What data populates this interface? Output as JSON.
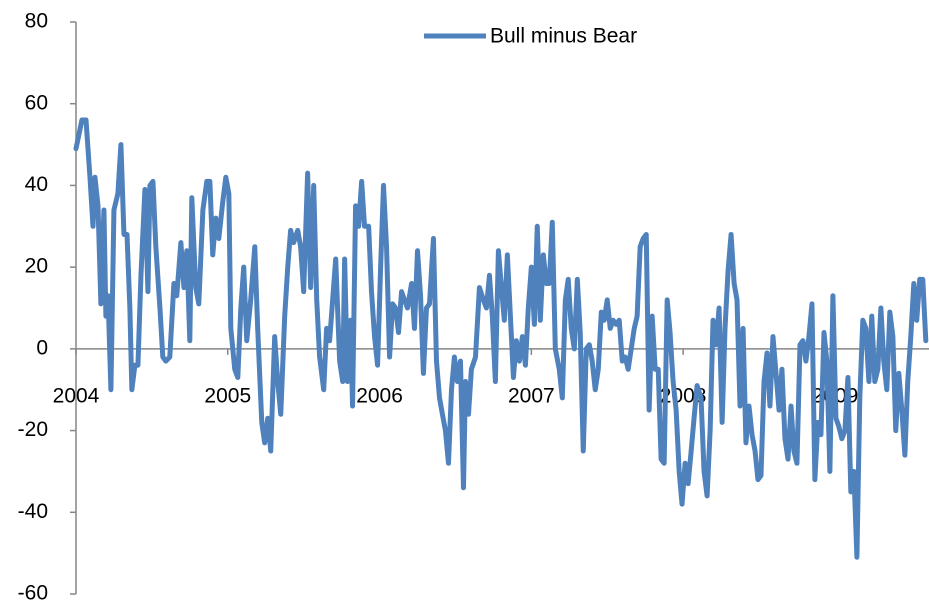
{
  "chart_data": {
    "type": "line",
    "x": [
      2004.0,
      2004.039,
      2004.066,
      2004.092,
      2004.112,
      2004.125,
      2004.145,
      2004.164,
      2004.184,
      2004.197,
      2004.211,
      2004.23,
      2004.25,
      2004.276,
      2004.296,
      2004.316,
      2004.336,
      2004.355,
      2004.368,
      2004.388,
      2004.408,
      2004.428,
      2004.454,
      2004.474,
      2004.487,
      2004.507,
      2004.526,
      2004.553,
      2004.572,
      2004.592,
      2004.618,
      2004.645,
      2004.664,
      2004.691,
      2004.711,
      2004.73,
      2004.75,
      2004.763,
      2004.789,
      2004.809,
      2004.836,
      2004.862,
      2004.882,
      2004.901,
      2004.921,
      2004.941,
      2004.967,
      2004.987,
      2005.007,
      2005.02,
      2005.046,
      2005.066,
      2005.086,
      2005.105,
      2005.125,
      2005.151,
      2005.178,
      2005.197,
      2005.224,
      2005.243,
      2005.263,
      2005.283,
      2005.309,
      2005.329,
      2005.349,
      2005.375,
      2005.395,
      2005.414,
      2005.434,
      2005.461,
      2005.48,
      2005.5,
      2005.526,
      2005.546,
      2005.566,
      2005.586,
      2005.605,
      2005.632,
      2005.651,
      2005.671,
      2005.691,
      2005.711,
      2005.737,
      2005.757,
      2005.77,
      2005.789,
      2005.809,
      2005.822,
      2005.842,
      2005.862,
      2005.882,
      2005.901,
      2005.928,
      2005.947,
      2005.967,
      2005.987,
      2006.007,
      2006.026,
      2006.046,
      2006.066,
      2006.086,
      2006.105,
      2006.125,
      2006.145,
      2006.164,
      2006.184,
      2006.211,
      2006.23,
      2006.25,
      2006.27,
      2006.289,
      2006.309,
      2006.329,
      2006.355,
      2006.375,
      2006.395,
      2006.414,
      2006.434,
      2006.454,
      2006.474,
      2006.493,
      2006.513,
      2006.533,
      2006.553,
      2006.566,
      2006.586,
      2006.605,
      2006.632,
      2006.658,
      2006.684,
      2006.704,
      2006.724,
      2006.743,
      2006.763,
      2006.783,
      2006.803,
      2006.822,
      2006.842,
      2006.862,
      2006.882,
      2006.901,
      2006.921,
      2006.941,
      2006.961,
      2006.98,
      2007.0,
      2007.02,
      2007.039,
      2007.059,
      2007.079,
      2007.099,
      2007.118,
      2007.138,
      2007.158,
      2007.184,
      2007.204,
      2007.224,
      2007.243,
      2007.263,
      2007.283,
      2007.303,
      2007.322,
      2007.342,
      2007.362,
      2007.382,
      2007.401,
      2007.421,
      2007.441,
      2007.461,
      2007.48,
      2007.5,
      2007.52,
      2007.539,
      2007.559,
      2007.579,
      2007.599,
      2007.618,
      2007.638,
      2007.658,
      2007.678,
      2007.697,
      2007.717,
      2007.737,
      2007.757,
      2007.776,
      2007.796,
      2007.816,
      2007.836,
      2007.855,
      2007.875,
      2007.895,
      2007.914,
      2007.934,
      2007.954,
      2007.974,
      2007.993,
      2008.013,
      2008.033,
      2008.053,
      2008.072,
      2008.092,
      2008.118,
      2008.138,
      2008.158,
      2008.178,
      2008.197,
      2008.217,
      2008.237,
      2008.257,
      2008.276,
      2008.296,
      2008.316,
      2008.336,
      2008.355,
      2008.375,
      2008.395,
      2008.414,
      2008.434,
      2008.454,
      2008.474,
      2008.493,
      2008.513,
      2008.533,
      2008.553,
      2008.572,
      2008.592,
      2008.612,
      2008.632,
      2008.651,
      2008.671,
      2008.691,
      2008.711,
      2008.73,
      2008.75,
      2008.77,
      2008.789,
      2008.809,
      2008.829,
      2008.849,
      2008.868,
      2008.888,
      2008.908,
      2008.928,
      2008.947,
      2008.967,
      2008.987,
      2009.007,
      2009.026,
      2009.046,
      2009.066,
      2009.086,
      2009.105,
      2009.125,
      2009.145,
      2009.164,
      2009.184,
      2009.204,
      2009.224,
      2009.243,
      2009.263,
      2009.283,
      2009.303,
      2009.322,
      2009.342,
      2009.362,
      2009.382,
      2009.401,
      2009.421,
      2009.441,
      2009.461,
      2009.48,
      2009.5,
      2009.52,
      2009.539,
      2009.559,
      2009.579,
      2009.599
    ],
    "series": [
      {
        "name": "Bull minus Bear",
        "color": "#4f81bd",
        "values": [
          49,
          56,
          56,
          42,
          30,
          42,
          35,
          11,
          34,
          8,
          13,
          -10,
          34,
          38,
          50,
          28,
          28,
          10,
          -10,
          -4,
          -4,
          18,
          39,
          14,
          40,
          41,
          25,
          10,
          -2,
          -3,
          -2,
          16,
          13,
          26,
          15,
          24,
          2,
          37,
          15,
          11,
          34,
          41,
          41,
          23,
          32,
          27,
          36,
          42,
          38,
          5,
          -5,
          -7,
          10,
          20,
          2,
          12,
          25,
          5,
          -18,
          -23,
          -17,
          -25,
          3,
          -8,
          -16,
          8,
          20,
          29,
          26,
          29,
          25,
          14,
          43,
          15,
          40,
          12,
          -2,
          -10,
          5,
          2,
          12,
          22,
          -3,
          -8,
          22,
          -8,
          7,
          -14,
          35,
          30,
          41,
          30,
          30,
          14,
          3,
          -4,
          20,
          40,
          25,
          -2,
          11,
          10,
          4,
          14,
          12,
          10,
          16,
          5,
          24,
          13,
          -6,
          10,
          11,
          27,
          -3,
          -12,
          -16,
          -20,
          -28,
          -10,
          -2,
          -8,
          -3,
          -34,
          -8,
          -16,
          -5,
          -2,
          15,
          12,
          10,
          18,
          8,
          -8,
          24,
          15,
          7,
          23,
          8,
          -7,
          2,
          -3,
          3,
          -4,
          10,
          20,
          6,
          30,
          7,
          23,
          16,
          16,
          31,
          0,
          -5,
          -12,
          12,
          17,
          5,
          0,
          17,
          4,
          -25,
          0,
          1,
          -3,
          -10,
          -5,
          9,
          7,
          12,
          5,
          7,
          6,
          7,
          -3,
          -2,
          -5,
          0,
          5,
          8,
          25,
          27,
          28,
          -15,
          8,
          -5,
          -5,
          -27,
          -28,
          12,
          4,
          -8,
          -15,
          -30,
          -38,
          -28,
          -33,
          -25,
          -17,
          -9,
          -12,
          -30,
          -36,
          -20,
          7,
          1,
          10,
          -18,
          5,
          19,
          28,
          16,
          12,
          -14,
          5,
          -23,
          -14,
          -21,
          -25,
          -32,
          -31,
          -8,
          -1,
          -14,
          3,
          -6,
          -15,
          -5,
          -22,
          -27,
          -14,
          -25,
          -28,
          1,
          2,
          -3,
          3,
          11,
          -32,
          -18,
          -21,
          4,
          -3,
          -30,
          13,
          -17,
          -19,
          -22,
          -20,
          -7,
          -35,
          -30,
          -51,
          -12,
          7,
          5,
          -8,
          8,
          -8,
          -5,
          10,
          -3,
          -10,
          9,
          3,
          -20,
          -6,
          -15,
          -26,
          -8,
          3,
          16,
          7,
          17,
          17,
          2
        ]
      }
    ],
    "xlim": [
      2004,
      2009.62
    ],
    "xticks": [
      2004,
      2005,
      2006,
      2007,
      2008,
      2009
    ],
    "ylim": [
      -60,
      80
    ],
    "yticks": [
      -60,
      -40,
      -20,
      0,
      20,
      40,
      60,
      80
    ],
    "legend": "top"
  }
}
